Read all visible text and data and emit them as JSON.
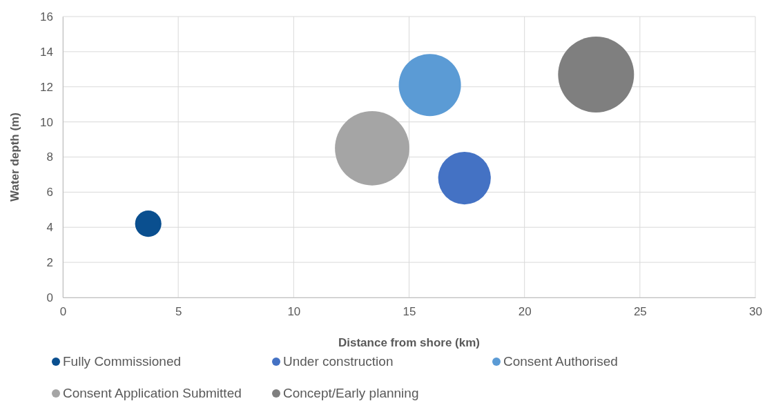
{
  "chart_data": {
    "type": "bubble",
    "xlabel": "Distance from shore (km)",
    "ylabel": "Water depth (m)",
    "xlim": [
      0,
      30
    ],
    "xticks": [
      0,
      5,
      10,
      15,
      20,
      25,
      30
    ],
    "ylim": [
      0,
      16
    ],
    "yticks": [
      0,
      2,
      4,
      6,
      8,
      10,
      12,
      14,
      16
    ],
    "grid": true,
    "legend": "bottom",
    "series": [
      {
        "name": "Fully Commissioned",
        "color": "#0a4f8f",
        "x": [
          3.7
        ],
        "values": [
          4.2
        ],
        "sizes": [
          0.12
        ]
      },
      {
        "name": "Under construction",
        "color": "#4472c4",
        "x": [
          17.4
        ],
        "values": [
          6.8
        ],
        "sizes": [
          0.48
        ]
      },
      {
        "name": "Consent Authorised",
        "color": "#5b9bd5",
        "x": [
          15.9
        ],
        "values": [
          12.1
        ],
        "sizes": [
          0.67
        ]
      },
      {
        "name": "Consent Application Submitted",
        "color": "#a5a5a5",
        "x": [
          13.4
        ],
        "values": [
          8.5
        ],
        "sizes": [
          0.96
        ]
      },
      {
        "name": "Concept/Early planning",
        "color": "#7f7f7f",
        "x": [
          23.1
        ],
        "values": [
          12.7
        ],
        "sizes": [
          1
        ]
      }
    ]
  }
}
